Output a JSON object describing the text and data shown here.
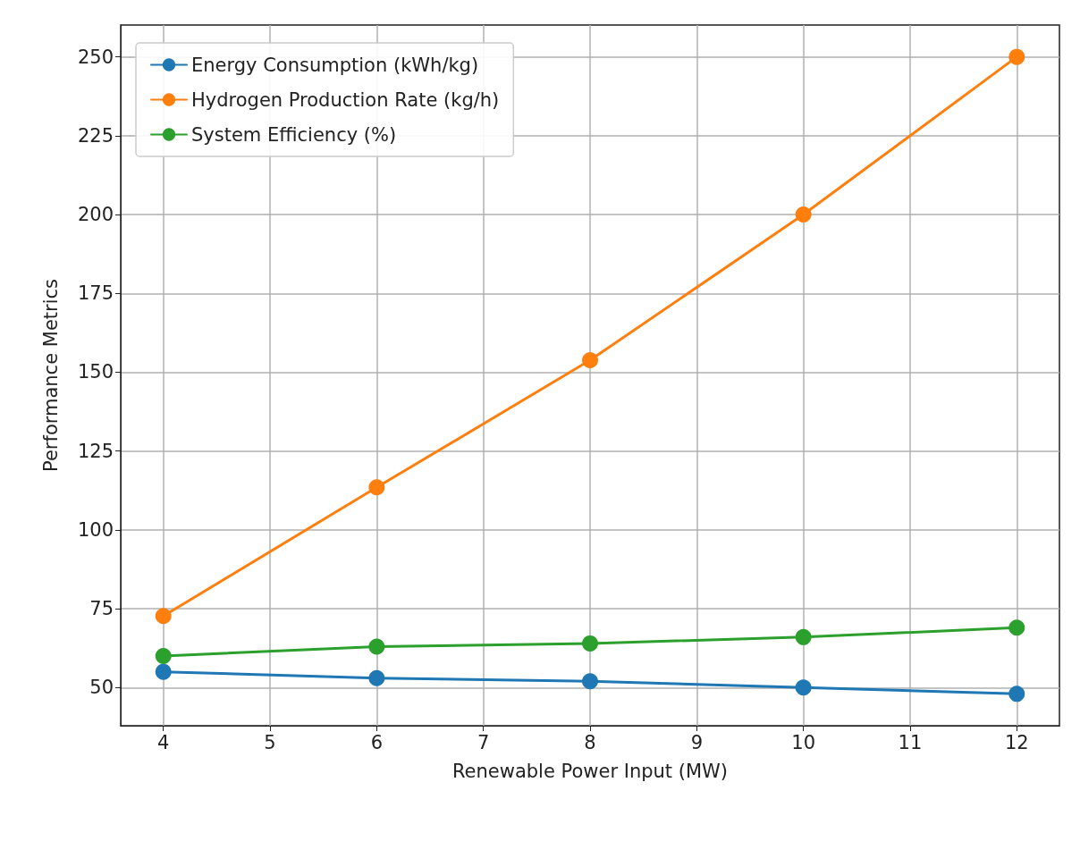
{
  "chart_data": {
    "type": "line",
    "xlabel": "Renewable Power Input (MW)",
    "ylabel": "Performance Metrics",
    "x": [
      4,
      6,
      8,
      10,
      12
    ],
    "series": [
      {
        "name": "Energy Consumption (kWh/kg)",
        "color": "#1f77b4",
        "values": [
          55,
          53,
          52,
          50,
          48
        ]
      },
      {
        "name": "Hydrogen Production Rate (kg/h)",
        "color": "#ff7f0e",
        "values": [
          72.7,
          113.5,
          153.8,
          200,
          250
        ]
      },
      {
        "name": "System Efficiency (%)",
        "color": "#2ca02c",
        "values": [
          60,
          63,
          64,
          66,
          69
        ]
      }
    ],
    "xlim": [
      3.6,
      12.4
    ],
    "xticks": [
      4,
      5,
      6,
      7,
      8,
      9,
      10,
      11,
      12
    ],
    "ylim": [
      37.9,
      260.1
    ],
    "yticks": [
      50,
      75,
      100,
      125,
      150,
      175,
      200,
      225,
      250
    ],
    "grid": true,
    "legend": "top left",
    "marker": "circle",
    "line_style": "solid"
  }
}
